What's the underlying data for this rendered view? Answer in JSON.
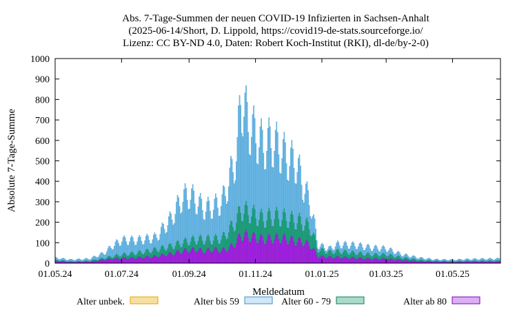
{
  "chart_data": {
    "type": "bar",
    "stacked": true,
    "title_lines": [
      "Abs. 7-Tage-Summen der neuen COVID-19 Infizierten in Sachsen-Anhalt",
      "(2025-06-14/Short, D. Lippold, https://covid19-de-stats.sourceforge.io/",
      "Lizenz: CC BY-ND 4.0, Daten: Robert Koch-Institut (RKI), dl-de/by-2-0)"
    ],
    "xlabel": "Meldedatum",
    "ylabel": "Absolute 7-Tage-Summe",
    "ylim": [
      0,
      1000
    ],
    "yticks": [
      0,
      100,
      200,
      300,
      400,
      500,
      600,
      700,
      800,
      900,
      1000
    ],
    "x_start": "2024-05-01",
    "x_end": "2025-06-14",
    "xticks": [
      {
        "date": "2024-05-01",
        "label": "01.05.24"
      },
      {
        "date": "2024-07-01",
        "label": "01.07.24"
      },
      {
        "date": "2024-09-01",
        "label": "01.09.24"
      },
      {
        "date": "2024-11-01",
        "label": "01.11.24"
      },
      {
        "date": "2025-01-01",
        "label": "01.01.25"
      },
      {
        "date": "2025-03-01",
        "label": "01.03.25"
      },
      {
        "date": "2025-05-01",
        "label": "01.05.25"
      }
    ],
    "series": [
      {
        "name": "Alter unbek.",
        "color": "#f7dfa0",
        "stroke": "#e4a000"
      },
      {
        "name": "Alter bis 59",
        "color": "#6cbde9",
        "stroke": "#3b8fc7",
        "legend_fill": "#cfe8f7"
      },
      {
        "name": "Alter 60 - 79",
        "color": "#14a37c",
        "stroke": "#0a7a5a",
        "legend_fill": "#a8dcc8"
      },
      {
        "name": "Alter ab 80",
        "color": "#a21de6",
        "stroke": "#7e00b8",
        "legend_fill": "#dcaef5"
      }
    ],
    "weekly": [
      {
        "date": "2024-05-01",
        "ab80": 12,
        "a60_79": 6,
        "bis59": 12
      },
      {
        "date": "2024-05-15",
        "ab80": 6,
        "a60_79": 4,
        "bis59": 10
      },
      {
        "date": "2024-06-01",
        "ab80": 8,
        "a60_79": 5,
        "bis59": 12
      },
      {
        "date": "2024-06-15",
        "ab80": 20,
        "a60_79": 10,
        "bis59": 30
      },
      {
        "date": "2024-06-22",
        "ab80": 25,
        "a60_79": 15,
        "bis59": 60
      },
      {
        "date": "2024-07-01",
        "ab80": 28,
        "a60_79": 22,
        "bis59": 85
      },
      {
        "date": "2024-07-15",
        "ab80": 32,
        "a60_79": 28,
        "bis59": 75
      },
      {
        "date": "2024-08-01",
        "ab80": 40,
        "a60_79": 40,
        "bis59": 70
      },
      {
        "date": "2024-08-15",
        "ab80": 55,
        "a60_79": 45,
        "bis59": 160
      },
      {
        "date": "2024-08-25",
        "ab80": 70,
        "a60_79": 50,
        "bis59": 260
      },
      {
        "date": "2024-09-01",
        "ab80": 78,
        "a60_79": 55,
        "bis59": 270
      },
      {
        "date": "2024-09-08",
        "ab80": 80,
        "a60_79": 60,
        "bis59": 220
      },
      {
        "date": "2024-09-15",
        "ab80": 70,
        "a60_79": 70,
        "bis59": 180
      },
      {
        "date": "2024-09-22",
        "ab80": 80,
        "a60_79": 60,
        "bis59": 190
      },
      {
        "date": "2024-10-01",
        "ab80": 75,
        "a60_79": 70,
        "bis59": 215
      },
      {
        "date": "2024-10-08",
        "ab80": 90,
        "a60_79": 110,
        "bis59": 300
      },
      {
        "date": "2024-10-15",
        "ab80": 130,
        "a60_79": 130,
        "bis59": 400
      },
      {
        "date": "2024-10-18",
        "ab80": 165,
        "a60_79": 150,
        "bis59": 675
      },
      {
        "date": "2024-10-25",
        "ab80": 160,
        "a60_79": 140,
        "bis59": 520
      },
      {
        "date": "2024-11-01",
        "ab80": 150,
        "a60_79": 130,
        "bis59": 470
      },
      {
        "date": "2024-11-08",
        "ab80": 140,
        "a60_79": 120,
        "bis59": 430
      },
      {
        "date": "2024-11-15",
        "ab80": 145,
        "a60_79": 130,
        "bis59": 445
      },
      {
        "date": "2024-11-22",
        "ab80": 150,
        "a60_79": 125,
        "bis59": 405
      },
      {
        "date": "2024-12-01",
        "ab80": 140,
        "a60_79": 120,
        "bis59": 350
      },
      {
        "date": "2024-12-08",
        "ab80": 130,
        "a60_79": 120,
        "bis59": 340
      },
      {
        "date": "2024-12-15",
        "ab80": 125,
        "a60_79": 115,
        "bis59": 210
      },
      {
        "date": "2024-12-22",
        "ab80": 100,
        "a60_79": 100,
        "bis59": 130
      },
      {
        "date": "2024-12-28",
        "ab80": 40,
        "a60_79": 40,
        "bis59": 25
      },
      {
        "date": "2025-01-08",
        "ab80": 35,
        "a60_79": 30,
        "bis59": 20
      },
      {
        "date": "2025-01-15",
        "ab80": 35,
        "a60_79": 35,
        "bis59": 40
      },
      {
        "date": "2025-02-01",
        "ab80": 30,
        "a60_79": 30,
        "bis59": 45
      },
      {
        "date": "2025-02-15",
        "ab80": 25,
        "a60_79": 25,
        "bis59": 40
      },
      {
        "date": "2025-03-01",
        "ab80": 25,
        "a60_79": 25,
        "bis59": 35
      },
      {
        "date": "2025-03-15",
        "ab80": 18,
        "a60_79": 15,
        "bis59": 18
      },
      {
        "date": "2025-04-01",
        "ab80": 10,
        "a60_79": 8,
        "bis59": 12
      },
      {
        "date": "2025-04-15",
        "ab80": 8,
        "a60_79": 5,
        "bis59": 8
      },
      {
        "date": "2025-05-01",
        "ab80": 6,
        "a60_79": 5,
        "bis59": 8
      },
      {
        "date": "2025-05-15",
        "ab80": 8,
        "a60_79": 5,
        "bis59": 10
      },
      {
        "date": "2025-06-14",
        "ab80": 8,
        "a60_79": 6,
        "bis59": 12
      }
    ]
  }
}
